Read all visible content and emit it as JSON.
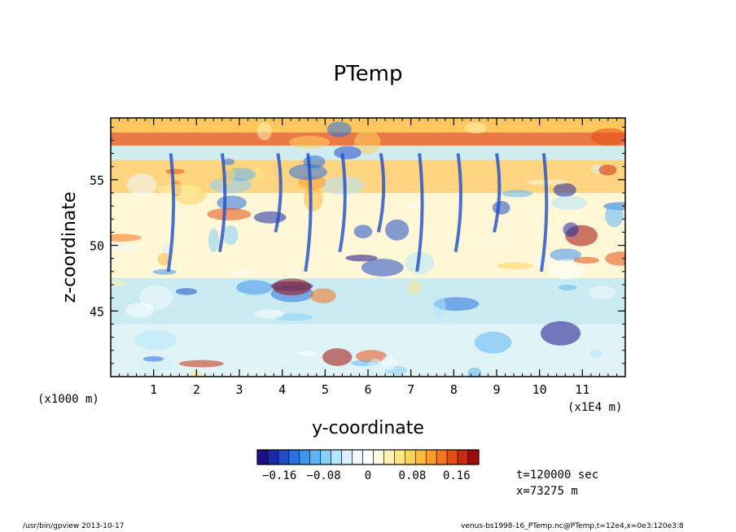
{
  "chart_data": {
    "type": "heatmap",
    "title": "PTemp",
    "xlabel": "y-coordinate",
    "ylabel": "z-coordinate",
    "x_unit_label": "(x1E4 m)",
    "y_unit_label": "(x1000 m)",
    "x_ticks": [
      "1",
      "2",
      "3",
      "4",
      "5",
      "6",
      "7",
      "8",
      "9",
      "10",
      "11"
    ],
    "x_tick_values": [
      1,
      2,
      3,
      4,
      5,
      6,
      7,
      8,
      9,
      10,
      11
    ],
    "xlim": [
      0,
      12
    ],
    "y_ticks": [
      "45",
      "50",
      "55"
    ],
    "y_tick_values": [
      45,
      50,
      55
    ],
    "ylim": [
      40,
      59.7
    ],
    "colorbar": {
      "tick_labels": [
        "−0.16",
        "−0.08",
        "0",
        "0.08",
        "0.16"
      ],
      "tick_values": [
        -0.16,
        -0.08,
        0,
        0.08,
        0.16
      ],
      "range": [
        -0.2,
        0.2
      ],
      "colors": [
        "#1c0f8a",
        "#1a2aa6",
        "#1f4cc8",
        "#2a72e0",
        "#3f96ef",
        "#5cb6f7",
        "#86d0fb",
        "#b3e5fd",
        "#d8f1fe",
        "#f0f9ff",
        "#ffffff",
        "#fffbe0",
        "#fff2b0",
        "#ffe585",
        "#ffd35c",
        "#ffba3c",
        "#ff9a28",
        "#f6741c",
        "#e54e15",
        "#c82a10",
        "#9c0a0a"
      ]
    },
    "values_note": ""
  },
  "annotations": {
    "time": "t=120000 sec",
    "x_position": "x=73275 m"
  },
  "footer": {
    "left": "/usr/bin/gpview  2013-10-17",
    "right": "venus-bs1998-16_PTemp.nc@PTemp,t=12e4,x=0e3:120e3:8"
  }
}
